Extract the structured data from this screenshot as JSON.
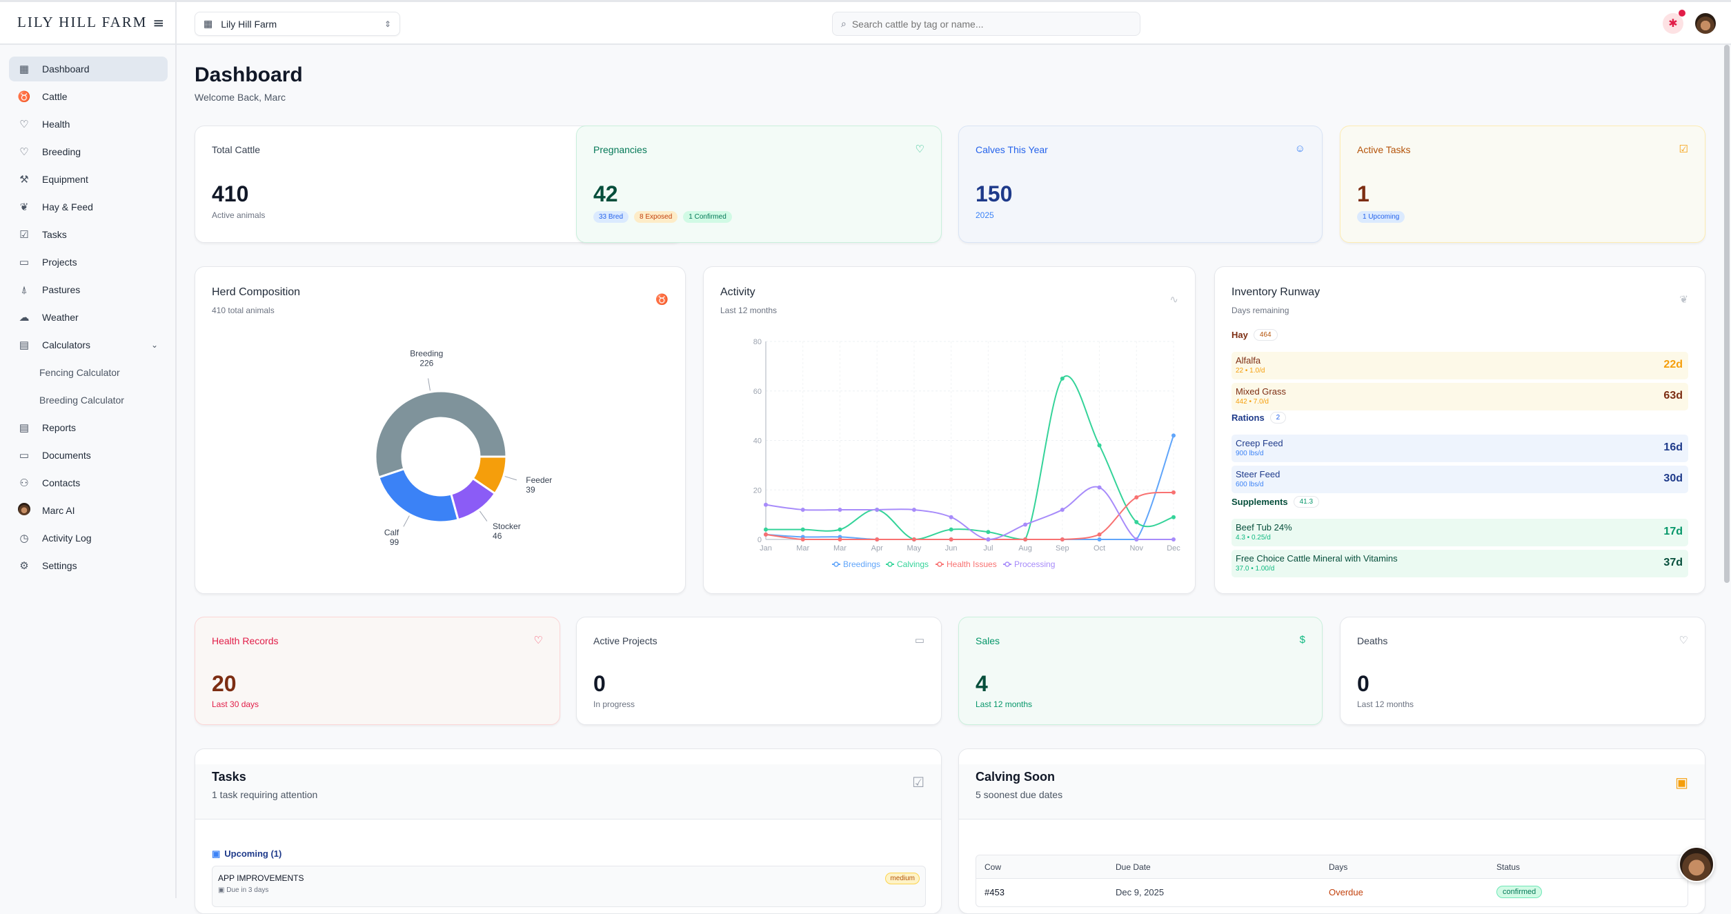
{
  "app": {
    "logo": "LILY HILL FARM",
    "farm_select": "Lily Hill Farm",
    "search_placeholder": "Search cattle by tag or name...",
    "notification_icon": "asterisk-icon"
  },
  "sidebar": {
    "items": [
      {
        "label": "Dashboard",
        "icon": "grid-icon",
        "active": true
      },
      {
        "label": "Cattle",
        "icon": "cow-icon"
      },
      {
        "label": "Health",
        "icon": "heart-pulse-icon"
      },
      {
        "label": "Breeding",
        "icon": "heart-icon"
      },
      {
        "label": "Equipment",
        "icon": "wrench-icon"
      },
      {
        "label": "Hay & Feed",
        "icon": "wheat-icon"
      },
      {
        "label": "Tasks",
        "icon": "checkbox-icon"
      },
      {
        "label": "Projects",
        "icon": "folder-icon"
      },
      {
        "label": "Pastures",
        "icon": "tree-icon"
      },
      {
        "label": "Weather",
        "icon": "cloud-icon"
      },
      {
        "label": "Calculators",
        "icon": "calculator-icon",
        "expanded": true
      },
      {
        "label": "Fencing Calculator",
        "sub": true
      },
      {
        "label": "Breeding Calculator",
        "sub": true
      },
      {
        "label": "Reports",
        "icon": "file-text-icon"
      },
      {
        "label": "Documents",
        "icon": "folder-open-icon"
      },
      {
        "label": "Contacts",
        "icon": "users-icon"
      },
      {
        "label": "Marc AI",
        "icon": "avatar"
      },
      {
        "label": "Activity Log",
        "icon": "clock-icon"
      },
      {
        "label": "Settings",
        "icon": "gear-icon"
      }
    ]
  },
  "page": {
    "title": "Dashboard",
    "welcome": "Welcome Back, Marc"
  },
  "stats": {
    "total_cattle": {
      "label": "Total Cattle",
      "value": "410",
      "sub": "Active animals"
    },
    "pregnancies": {
      "label": "Pregnancies",
      "value": "42",
      "pills": [
        "33 Bred",
        "8 Exposed",
        "1 Confirmed"
      ]
    },
    "calves": {
      "label": "Calves This Year",
      "value": "150",
      "sub": "2025"
    },
    "active_tasks": {
      "label": "Active Tasks",
      "value": "1",
      "pill": "1 Upcoming"
    },
    "health": {
      "label": "Health Records",
      "value": "20",
      "sub": "Last 30 days"
    },
    "projects": {
      "label": "Active Projects",
      "value": "0",
      "sub": "In progress"
    },
    "sales": {
      "label": "Sales",
      "value": "4",
      "sub": "Last 12 months"
    },
    "deaths": {
      "label": "Deaths",
      "value": "0",
      "sub": "Last 12 months"
    }
  },
  "herd": {
    "title": "Herd Composition",
    "subtitle": "410 total animals"
  },
  "activity": {
    "title": "Activity",
    "subtitle": "Last 12 months"
  },
  "chart_data": [
    {
      "type": "pie",
      "donut": true,
      "categories": [
        "Breeding",
        "Calf",
        "Stocker",
        "Feeder"
      ],
      "values": [
        226,
        99,
        46,
        39
      ],
      "colors": [
        "#7f939b",
        "#3b82f6",
        "#8b5cf6",
        "#f59e0b"
      ]
    },
    {
      "type": "line",
      "categories": [
        "Jan",
        "Mar",
        "Mar",
        "Apr",
        "May",
        "Jun",
        "Jul",
        "Aug",
        "Sep",
        "Oct",
        "Nov",
        "Dec"
      ],
      "ylim": [
        0,
        80
      ],
      "yticks": [
        0,
        20,
        40,
        60,
        80
      ],
      "grid": true,
      "legend": "bottom",
      "series": [
        {
          "name": "Breedings",
          "color": "#60a5fa",
          "values": [
            2,
            1,
            1,
            0,
            0,
            0,
            0,
            0,
            0,
            0,
            0,
            42
          ]
        },
        {
          "name": "Calvings",
          "color": "#34d399",
          "values": [
            4,
            4,
            4,
            12,
            0,
            4,
            3,
            0,
            65,
            38,
            7,
            9
          ]
        },
        {
          "name": "Health Issues",
          "color": "#f87171",
          "values": [
            2,
            0,
            0,
            0,
            0,
            0,
            0,
            0,
            0,
            2,
            17,
            19
          ]
        },
        {
          "name": "Processing",
          "color": "#a78bfa",
          "values": [
            14,
            12,
            12,
            12,
            12,
            9,
            0,
            6,
            12,
            21,
            0,
            0
          ]
        }
      ]
    }
  ],
  "inventory": {
    "title": "Inventory Runway",
    "subtitle": "Days remaining",
    "sections": [
      {
        "name": "Hay",
        "count": "464",
        "items": [
          {
            "name": "Alfalfa",
            "detail": "22 • 1.0/d",
            "days": "22d"
          },
          {
            "name": "Mixed Grass",
            "detail": "442 • 7.0/d",
            "days": "63d"
          }
        ]
      },
      {
        "name": "Rations",
        "count": "2",
        "items": [
          {
            "name": "Creep Feed",
            "detail": "900 lbs/d",
            "days": "16d"
          },
          {
            "name": "Steer Feed",
            "detail": "600 lbs/d",
            "days": "30d"
          }
        ]
      },
      {
        "name": "Supplements",
        "count": "41.3",
        "items": [
          {
            "name": "Beef Tub 24%",
            "detail": "4.3 • 0.25/d",
            "days": "17d"
          },
          {
            "name": "Free Choice Cattle Mineral with Vitamins",
            "detail": "37.0 • 1.00/d",
            "days": "37d"
          }
        ]
      }
    ]
  },
  "tasks": {
    "title": "Tasks",
    "subtitle": "1 task requiring attention",
    "group": "Upcoming (1)",
    "items": [
      {
        "title": "APP IMPROVEMENTS",
        "due": "Due in 3 days",
        "priority": "medium"
      }
    ]
  },
  "calving": {
    "title": "Calving Soon",
    "subtitle": "5 soonest due dates",
    "columns": [
      "Cow",
      "Due Date",
      "Days",
      "Status"
    ],
    "rows": [
      {
        "cow": "#453",
        "due": "Dec 9, 2025",
        "days": "Overdue",
        "status": "confirmed"
      }
    ]
  }
}
